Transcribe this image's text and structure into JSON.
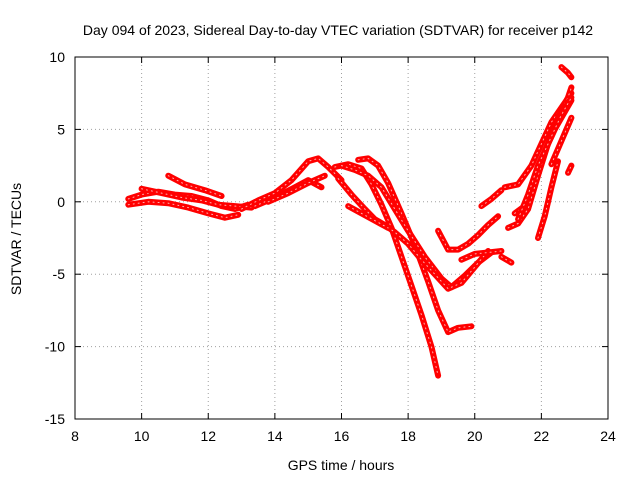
{
  "chart_data": {
    "type": "scatter",
    "title": "Day 094 of 2023, Sidereal Day-to-day VTEC variation (SDTVAR) for receiver p142",
    "xlabel": "GPS time / hours",
    "ylabel": "SDTVAR / TECUs",
    "xlim": [
      8,
      24
    ],
    "ylim": [
      -15,
      10
    ],
    "xticks": [
      "8",
      "10",
      "12",
      "14",
      "16",
      "18",
      "20",
      "22",
      "24"
    ],
    "yticks": [
      "10",
      "5",
      "0",
      "-5",
      "-10",
      "-15"
    ],
    "grid": true,
    "marker": "+",
    "color": "#ff0000",
    "tracks": [
      {
        "x": [
          9.6,
          10.0,
          10.5,
          11.0,
          11.5,
          12.0,
          12.4,
          12.8,
          13.2
        ],
        "y": [
          0.2,
          0.5,
          0.7,
          0.5,
          0.4,
          0.1,
          -0.3,
          -0.5,
          -0.2
        ]
      },
      {
        "x": [
          9.6,
          10.2,
          10.8,
          11.4,
          12.0,
          12.5,
          12.9
        ],
        "y": [
          -0.2,
          0.0,
          -0.1,
          -0.4,
          -0.8,
          -1.1,
          -0.9
        ]
      },
      {
        "x": [
          10.0,
          10.6,
          11.2,
          11.8,
          12.3,
          12.8,
          13.3
        ],
        "y": [
          0.9,
          0.6,
          0.3,
          0.1,
          -0.2,
          -0.3,
          -0.4
        ]
      },
      {
        "x": [
          10.8,
          11.3,
          11.9,
          12.4
        ],
        "y": [
          1.8,
          1.2,
          0.8,
          0.4
        ]
      },
      {
        "x": [
          13.0,
          13.5,
          14.0,
          14.5,
          15.0,
          15.3,
          15.6,
          16.0
        ],
        "y": [
          -0.5,
          0.1,
          0.6,
          1.5,
          2.8,
          3.0,
          2.4,
          1.5
        ]
      },
      {
        "x": [
          13.4,
          14.0,
          14.6,
          15.0,
          15.4
        ],
        "y": [
          -0.3,
          0.3,
          1.0,
          1.5,
          1.0
        ]
      },
      {
        "x": [
          13.8,
          14.4,
          15.0,
          15.5
        ],
        "y": [
          0.0,
          0.6,
          1.3,
          1.8
        ]
      },
      {
        "x": [
          15.8,
          16.2,
          16.6,
          16.9,
          17.2,
          17.5,
          17.8,
          18.1,
          18.4,
          18.7,
          18.9
        ],
        "y": [
          2.4,
          2.6,
          2.3,
          1.2,
          -0.2,
          -1.8,
          -3.8,
          -5.8,
          -7.8,
          -10.0,
          -12.0
        ]
      },
      {
        "x": [
          16.5,
          16.8,
          17.1,
          17.4,
          17.8,
          18.2,
          18.6,
          18.9,
          19.2,
          19.5,
          19.9
        ],
        "y": [
          2.9,
          3.0,
          2.5,
          1.3,
          -0.8,
          -3.0,
          -5.5,
          -7.5,
          -9.0,
          -8.7,
          -8.6
        ]
      },
      {
        "x": [
          16.0,
          16.4,
          16.8,
          17.2,
          17.6,
          18.0,
          18.5,
          19.0,
          19.3,
          19.7,
          20.1,
          20.5
        ],
        "y": [
          2.5,
          2.2,
          1.8,
          1.0,
          -0.5,
          -2.0,
          -3.8,
          -5.3,
          -5.9,
          -5.1,
          -4.2,
          -3.5
        ]
      },
      {
        "x": [
          15.9,
          16.3,
          16.7,
          17.0,
          17.3,
          17.6,
          18.0,
          18.4,
          18.8,
          19.2,
          19.6,
          20.0,
          20.4
        ],
        "y": [
          1.6,
          0.5,
          -0.5,
          -1.2,
          -1.6,
          -2.1,
          -2.9,
          -4.0,
          -5.0,
          -6.0,
          -5.6,
          -4.5,
          -3.4
        ]
      },
      {
        "x": [
          16.2,
          16.6,
          17.0,
          17.4
        ],
        "y": [
          -0.3,
          -0.8,
          -1.3,
          -1.8
        ]
      },
      {
        "x": [
          18.9,
          19.2,
          19.5,
          19.8,
          20.1,
          20.4,
          20.7
        ],
        "y": [
          -2.0,
          -3.3,
          -3.3,
          -2.9,
          -2.3,
          -1.6,
          -1.0
        ]
      },
      {
        "x": [
          20.2,
          20.5,
          20.8
        ],
        "y": [
          -0.3,
          0.2,
          0.8
        ]
      },
      {
        "x": [
          19.6,
          20.0,
          20.4,
          20.8
        ],
        "y": [
          -4.0,
          -3.6,
          -3.5,
          -3.4
        ]
      },
      {
        "x": [
          20.8,
          21.1
        ],
        "y": [
          -3.8,
          -4.2
        ]
      },
      {
        "x": [
          20.9,
          21.3,
          21.7,
          22.0,
          22.3,
          22.6,
          22.9
        ],
        "y": [
          1.0,
          1.2,
          2.5,
          4.0,
          5.5,
          6.5,
          7.5
        ]
      },
      {
        "x": [
          21.2,
          21.5,
          21.8,
          22.1,
          22.4,
          22.7,
          22.9
        ],
        "y": [
          -0.8,
          -0.3,
          1.5,
          3.5,
          5.0,
          6.2,
          7.0
        ]
      },
      {
        "x": [
          21.0,
          21.3,
          21.6,
          21.9,
          22.2,
          22.5,
          22.8,
          22.9
        ],
        "y": [
          -1.8,
          -1.5,
          -0.5,
          1.8,
          4.0,
          5.8,
          7.2,
          7.9
        ]
      },
      {
        "x": [
          21.3,
          21.6,
          21.9,
          22.3,
          22.6,
          22.9
        ],
        "y": [
          -1.2,
          0.5,
          2.5,
          4.5,
          6.0,
          7.2
        ]
      },
      {
        "x": [
          21.9,
          22.1,
          22.3,
          22.5
        ],
        "y": [
          -2.5,
          -1.0,
          1.0,
          2.8
        ]
      },
      {
        "x": [
          22.3,
          22.6,
          22.9
        ],
        "y": [
          2.6,
          4.2,
          5.8
        ]
      },
      {
        "x": [
          22.8,
          22.9
        ],
        "y": [
          2.0,
          2.5
        ]
      },
      {
        "x": [
          22.6,
          22.8,
          22.9
        ],
        "y": [
          9.3,
          8.9,
          8.6
        ]
      }
    ]
  }
}
